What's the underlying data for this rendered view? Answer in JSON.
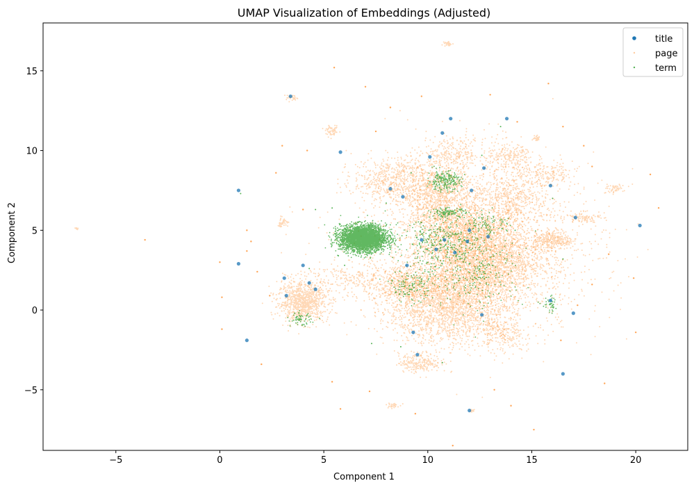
{
  "chart_data": {
    "type": "scatter",
    "title": "UMAP Visualization of Embeddings (Adjusted)",
    "xlabel": "Component 1",
    "ylabel": "Component 2",
    "xlim": [
      -8.5,
      22.5
    ],
    "ylim": [
      -8.8,
      18.0
    ],
    "xticks": [
      -5,
      0,
      5,
      10,
      15,
      20
    ],
    "yticks": [
      -5,
      0,
      5,
      10,
      15
    ],
    "xtick_labels": [
      "−5",
      "0",
      "5",
      "10",
      "15",
      "20"
    ],
    "ytick_labels": [
      "−5",
      "0",
      "5",
      "10",
      "15"
    ],
    "grid": false,
    "legend_position": "top-right",
    "series": [
      {
        "name": "title",
        "color": "#1f77b4"
      },
      {
        "name": "page",
        "color": "#ff7f0e"
      },
      {
        "name": "term",
        "color": "#2ca02c"
      }
    ],
    "title_points": [
      [
        0.9,
        7.5
      ],
      [
        3.4,
        13.4
      ],
      [
        5.8,
        9.9
      ],
      [
        8.2,
        7.6
      ],
      [
        11.1,
        12.0
      ],
      [
        10.7,
        11.1
      ],
      [
        10.1,
        9.6
      ],
      [
        12.7,
        8.9
      ],
      [
        12.1,
        7.5
      ],
      [
        15.9,
        7.8
      ],
      [
        13.8,
        12.0
      ],
      [
        17.1,
        5.8
      ],
      [
        20.2,
        5.3
      ],
      [
        10.8,
        4.4
      ],
      [
        11.3,
        3.6
      ],
      [
        12.9,
        4.6
      ],
      [
        12.0,
        5.0
      ],
      [
        10.4,
        3.8
      ],
      [
        9.7,
        4.4
      ],
      [
        9.0,
        2.8
      ],
      [
        4.0,
        2.8
      ],
      [
        3.1,
        2.0
      ],
      [
        4.3,
        1.7
      ],
      [
        4.6,
        1.3
      ],
      [
        3.2,
        0.9
      ],
      [
        1.3,
        -1.9
      ],
      [
        9.3,
        -1.4
      ],
      [
        9.5,
        -2.8
      ],
      [
        12.6,
        -0.3
      ],
      [
        15.9,
        0.6
      ],
      [
        17.0,
        -0.2
      ],
      [
        16.5,
        -4.0
      ],
      [
        12.0,
        -6.3
      ],
      [
        0.9,
        2.9
      ],
      [
        8.8,
        7.1
      ],
      [
        11.9,
        4.3
      ]
    ],
    "page_clusters": [
      {
        "center": [
          4.0,
          0.5
        ],
        "spread": [
          0.6,
          0.6
        ],
        "count": 900
      },
      {
        "center": [
          11.0,
          0.5
        ],
        "spread": [
          1.5,
          1.3
        ],
        "count": 2400
      },
      {
        "center": [
          12.8,
          3.2
        ],
        "spread": [
          1.4,
          1.3
        ],
        "count": 2400
      },
      {
        "center": [
          10.5,
          7.3
        ],
        "spread": [
          0.9,
          0.9
        ],
        "count": 900
      },
      {
        "center": [
          11.5,
          5.0
        ],
        "spread": [
          1.2,
          0.9
        ],
        "count": 1000
      },
      {
        "center": [
          8.2,
          8.2
        ],
        "spread": [
          0.9,
          0.7
        ],
        "count": 500
      },
      {
        "center": [
          14.0,
          7.0
        ],
        "spread": [
          0.9,
          0.8
        ],
        "count": 500
      },
      {
        "center": [
          16.0,
          4.4
        ],
        "spread": [
          0.5,
          0.3
        ],
        "count": 300
      },
      {
        "center": [
          8.8,
          1.5
        ],
        "spread": [
          0.8,
          0.5
        ],
        "count": 400
      },
      {
        "center": [
          9.6,
          -3.3
        ],
        "spread": [
          0.5,
          0.3
        ],
        "count": 220
      },
      {
        "center": [
          13.6,
          -1.5
        ],
        "spread": [
          0.5,
          0.5
        ],
        "count": 180
      },
      {
        "center": [
          14.0,
          9.5
        ],
        "spread": [
          0.6,
          0.5
        ],
        "count": 220
      },
      {
        "center": [
          11.2,
          9.8
        ],
        "spread": [
          0.8,
          0.5
        ],
        "count": 260
      },
      {
        "center": [
          15.8,
          8.5
        ],
        "spread": [
          0.6,
          0.4
        ],
        "count": 150
      },
      {
        "center": [
          12.4,
          4.0
        ],
        "spread": [
          3.0,
          2.8
        ],
        "count": 1800
      },
      {
        "center": [
          5.4,
          11.2
        ],
        "spread": [
          0.15,
          0.15
        ],
        "count": 60
      },
      {
        "center": [
          3.5,
          13.3
        ],
        "spread": [
          0.2,
          0.1
        ],
        "count": 30
      },
      {
        "center": [
          3.0,
          5.5
        ],
        "spread": [
          0.15,
          0.15
        ],
        "count": 40
      },
      {
        "center": [
          11.0,
          16.7
        ],
        "spread": [
          0.1,
          0.08
        ],
        "count": 30
      },
      {
        "center": [
          18.9,
          7.6
        ],
        "spread": [
          0.25,
          0.12
        ],
        "count": 50
      },
      {
        "center": [
          17.5,
          5.8
        ],
        "spread": [
          0.4,
          0.15
        ],
        "count": 80
      },
      {
        "center": [
          15.2,
          10.8
        ],
        "spread": [
          0.1,
          0.1
        ],
        "count": 30
      },
      {
        "center": [
          8.3,
          -6.0
        ],
        "spread": [
          0.15,
          0.1
        ],
        "count": 30
      },
      {
        "center": [
          -6.9,
          5.1
        ],
        "spread": [
          0.04,
          0.04
        ],
        "count": 12
      },
      {
        "center": [
          12.1,
          -6.3
        ],
        "spread": [
          0.08,
          0.06
        ],
        "count": 15
      },
      {
        "center": [
          6.5,
          2.0
        ],
        "spread": [
          1.5,
          0.5
        ],
        "count": 250
      }
    ],
    "page_scattered": [
      [
        -3.6,
        4.4
      ],
      [
        0.0,
        3.0
      ],
      [
        0.1,
        0.8
      ],
      [
        0.1,
        -1.2
      ],
      [
        1.3,
        5.0
      ],
      [
        1.3,
        3.7
      ],
      [
        2.0,
        -3.4
      ],
      [
        2.4,
        0.9
      ],
      [
        2.7,
        8.6
      ],
      [
        3.0,
        10.3
      ],
      [
        4.0,
        6.3
      ],
      [
        4.2,
        10.0
      ],
      [
        5.5,
        15.2
      ],
      [
        7.0,
        14.0
      ],
      [
        7.5,
        11.2
      ],
      [
        8.2,
        12.7
      ],
      [
        9.7,
        13.4
      ],
      [
        13.0,
        13.5
      ],
      [
        14.3,
        11.8
      ],
      [
        15.8,
        14.2
      ],
      [
        16.5,
        11.5
      ],
      [
        17.5,
        10.3
      ],
      [
        17.9,
        9.0
      ],
      [
        18.7,
        3.5
      ],
      [
        19.9,
        2.0
      ],
      [
        20.0,
        -1.4
      ],
      [
        20.7,
        8.5
      ],
      [
        21.1,
        6.4
      ],
      [
        18.5,
        -4.6
      ],
      [
        15.1,
        -7.5
      ],
      [
        11.2,
        -8.5
      ],
      [
        14.0,
        -6.0
      ],
      [
        5.4,
        -4.5
      ],
      [
        5.8,
        -6.2
      ],
      [
        7.2,
        -5.1
      ],
      [
        16.4,
        -1.9
      ],
      [
        17.2,
        0.3
      ],
      [
        17.9,
        1.6
      ],
      [
        1.8,
        2.4
      ],
      [
        1.5,
        4.3
      ],
      [
        9.4,
        -6.5
      ],
      [
        13.2,
        -5.0
      ]
    ],
    "term_clusters": [
      {
        "center": [
          6.9,
          4.5
        ],
        "spread": [
          0.55,
          0.4
        ],
        "count": 3400
      },
      {
        "center": [
          10.8,
          8.1
        ],
        "spread": [
          0.4,
          0.3
        ],
        "count": 220
      },
      {
        "center": [
          11.0,
          6.1
        ],
        "spread": [
          0.4,
          0.15
        ],
        "count": 120
      },
      {
        "center": [
          12.2,
          2.7
        ],
        "spread": [
          1.2,
          1.3
        ],
        "count": 300
      },
      {
        "center": [
          9.2,
          1.5
        ],
        "spread": [
          0.5,
          0.5
        ],
        "count": 120
      },
      {
        "center": [
          3.9,
          -0.6
        ],
        "spread": [
          0.25,
          0.2
        ],
        "count": 60
      },
      {
        "center": [
          15.9,
          0.3
        ],
        "spread": [
          0.2,
          0.25
        ],
        "count": 40
      },
      {
        "center": [
          10.5,
          4.3
        ],
        "spread": [
          0.9,
          0.7
        ],
        "count": 250
      },
      {
        "center": [
          12.9,
          5.5
        ],
        "spread": [
          0.5,
          0.35
        ],
        "count": 80
      }
    ],
    "term_scattered": [
      [
        5.4,
        6.4
      ],
      [
        4.6,
        6.3
      ],
      [
        8.7,
        -2.3
      ],
      [
        7.3,
        -2.1
      ],
      [
        6.0,
        2.8
      ],
      [
        5.7,
        3.4
      ],
      [
        8.0,
        6.7
      ],
      [
        14.2,
        5.0
      ],
      [
        16.0,
        7.0
      ],
      [
        1.0,
        7.3
      ],
      [
        16.5,
        3.2
      ],
      [
        10.7,
        -3.3
      ],
      [
        13.5,
        11.5
      ],
      [
        12.6,
        9.7
      ],
      [
        9.2,
        8.6
      ],
      [
        3.6,
        -0.2
      ],
      [
        4.3,
        2.6
      ]
    ]
  }
}
